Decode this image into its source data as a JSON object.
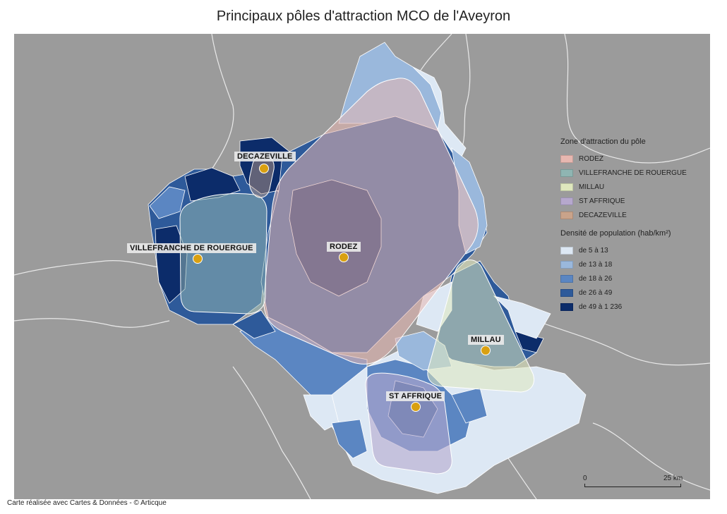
{
  "title": "Principaux pôles d'attraction MCO de l'Aveyron",
  "credit": "Carte réalisée avec Cartes & Données - © Articque",
  "legend": {
    "zones_title": "Zone d'attraction du pôle",
    "zones": [
      {
        "label": "RODEZ",
        "color": "#e7b7b0"
      },
      {
        "label": "VILLEFRANCHE DE ROUERGUE",
        "color": "#8fb5b2"
      },
      {
        "label": "MILLAU",
        "color": "#dfe8be"
      },
      {
        "label": "ST AFFRIQUE",
        "color": "#b6a8cd"
      },
      {
        "label": "DECAZEVILLE",
        "color": "#c9a38a"
      }
    ],
    "density_title": "Densité de population (hab/km²)",
    "density": [
      {
        "label": "de 5 à 13",
        "color": "#dde8f4"
      },
      {
        "label": "de 13 à 18",
        "color": "#9ab8dc"
      },
      {
        "label": "de 18 à 26",
        "color": "#5b86c2"
      },
      {
        "label": "de 26 à 49",
        "color": "#2e5a9a"
      },
      {
        "label": "de 49 à 1 236",
        "color": "#0c2c6a"
      }
    ]
  },
  "poles": [
    {
      "name": "DECAZEVILLE",
      "marker_color": "#d9a011"
    },
    {
      "name": "VILLEFRANCHE DE ROUERGUE",
      "marker_color": "#d9a011"
    },
    {
      "name": "RODEZ",
      "marker_color": "#d9a011"
    },
    {
      "name": "MILLAU",
      "marker_color": "#d9a011"
    },
    {
      "name": "ST AFFRIQUE",
      "marker_color": "#d9a011"
    }
  ],
  "scale": {
    "start": "0",
    "end": "25 km"
  },
  "background_color": "#9b9b9b"
}
